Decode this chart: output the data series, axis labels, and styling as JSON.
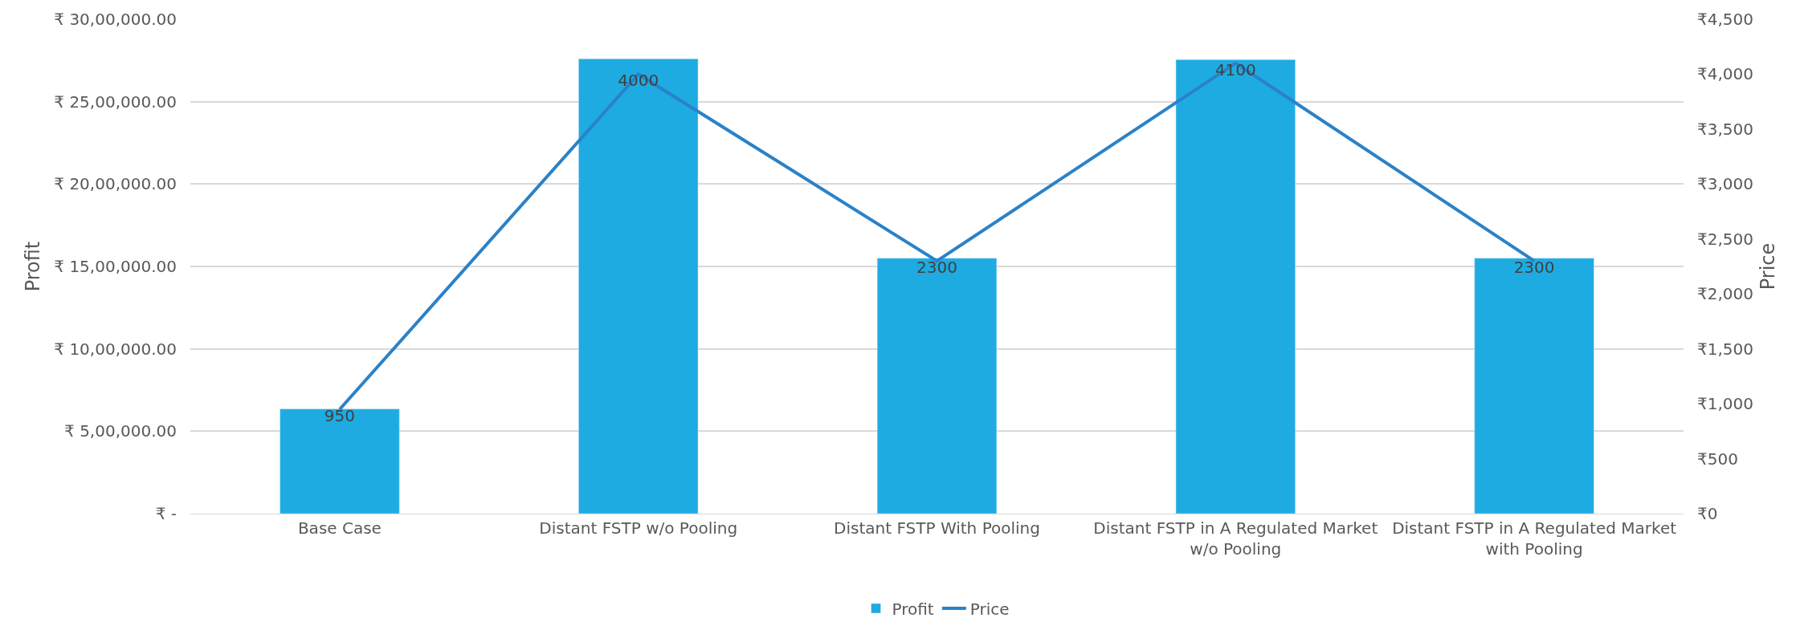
{
  "chart_data": {
    "type": "bar",
    "categories": [
      "Base Case",
      "Distant FSTP w/o Pooling",
      "Distant FSTP With Pooling",
      "Distant FSTP in A Regulated Market\nw/o Pooling",
      "Distant FSTP in A Regulated Market\nwith Pooling"
    ],
    "series": [
      {
        "name": "Profit",
        "color": "#1eabe2",
        "values": [
          635000,
          2760000,
          1550000,
          2755000,
          1550000
        ]
      },
      {
        "name": "Price",
        "type": "line",
        "axis": "y2",
        "color": "#2a82c8",
        "values": [
          950,
          4000,
          2300,
          4100,
          2300
        ],
        "value_labels": [
          "950",
          "4000",
          "2300",
          "4100",
          "2300"
        ]
      }
    ],
    "ylabel": "Profit",
    "y2label": "Price",
    "ylim": [
      0,
      3000000
    ],
    "yticks": [
      {
        "value": 0,
        "label": "₹ -"
      },
      {
        "value": 500000,
        "label": "₹ 5,00,000.00"
      },
      {
        "value": 1000000,
        "label": "₹ 10,00,000.00"
      },
      {
        "value": 1500000,
        "label": "₹ 15,00,000.00"
      },
      {
        "value": 2000000,
        "label": "₹ 20,00,000.00"
      },
      {
        "value": 2500000,
        "label": "₹ 25,00,000.00"
      },
      {
        "value": 3000000,
        "label": "₹ 30,00,000.00"
      }
    ],
    "y2lim": [
      0,
      4500
    ],
    "y2ticks": [
      {
        "value": 0,
        "label": "₹0"
      },
      {
        "value": 500,
        "label": "₹500"
      },
      {
        "value": 1000,
        "label": "₹1,000"
      },
      {
        "value": 1500,
        "label": "₹1,500"
      },
      {
        "value": 2000,
        "label": "₹2,000"
      },
      {
        "value": 2500,
        "label": "₹2,500"
      },
      {
        "value": 3000,
        "label": "₹3,000"
      },
      {
        "value": 3500,
        "label": "₹3,500"
      },
      {
        "value": 4000,
        "label": "₹4,000"
      },
      {
        "value": 4500,
        "label": "₹4,500"
      }
    ],
    "grid": "y",
    "legend": "bottom",
    "marker": "none",
    "line_style": "solid"
  }
}
